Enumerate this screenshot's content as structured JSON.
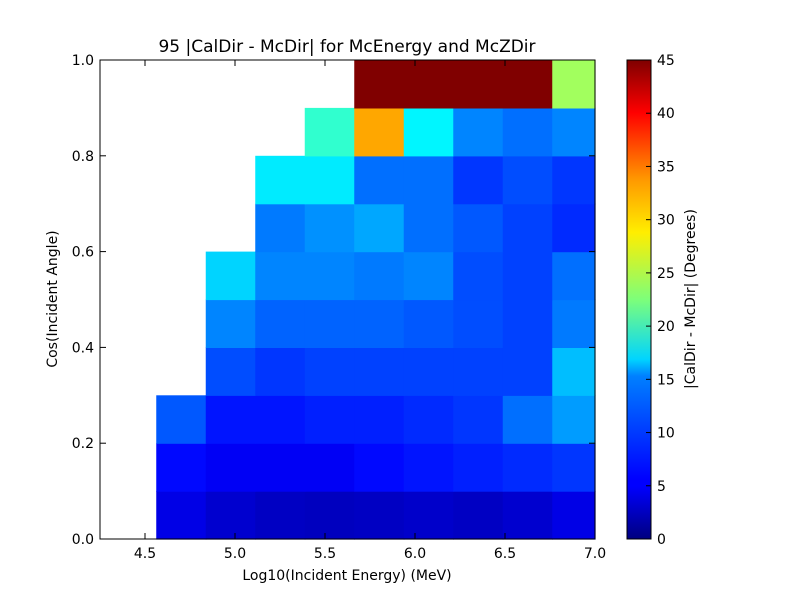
{
  "chart_data": {
    "type": "heatmap",
    "title": "95 |CalDir - McDir| for McEnergy and McZDir",
    "xlabel": "Log10(Incident Energy) (MeV)",
    "ylabel": "Cos(Incident Angle)",
    "colorbar_label": "|CalDir - McDir| (Degrees)",
    "colormap": "jet",
    "xlim": [
      4.25,
      7.0
    ],
    "ylim": [
      0.0,
      1.0
    ],
    "clim": [
      0,
      45
    ],
    "x_edges": [
      4.5625,
      4.8375,
      5.1125,
      5.3875,
      5.6625,
      5.9375,
      6.2125,
      6.4875,
      6.7625,
      7.0
    ],
    "y_edges": [
      0.0,
      0.1,
      0.2,
      0.3,
      0.4,
      0.5,
      0.6,
      0.7,
      0.8,
      0.9,
      1.0
    ],
    "values": [
      [
        4.5,
        3.5,
        3.0,
        2.8,
        3.0,
        3.3,
        3.0,
        3.5,
        4.5
      ],
      [
        6.0,
        5.2,
        5.2,
        5.2,
        6.0,
        6.5,
        7.0,
        7.5,
        8.0
      ],
      [
        9.5,
        6.5,
        6.5,
        7.0,
        7.0,
        7.5,
        8.0,
        10.5,
        12.5
      ],
      [
        null,
        9.0,
        8.0,
        8.5,
        8.5,
        8.5,
        8.5,
        8.5,
        14.0
      ],
      [
        null,
        11.5,
        10.0,
        10.0,
        10.0,
        9.5,
        9.0,
        8.5,
        11.0
      ],
      [
        null,
        15.0,
        11.5,
        11.5,
        11.0,
        11.5,
        9.0,
        8.5,
        10.5
      ],
      [
        null,
        null,
        11.0,
        12.0,
        13.0,
        10.5,
        9.5,
        8.5,
        7.5
      ],
      [
        null,
        null,
        16.0,
        16.0,
        10.5,
        10.5,
        8.0,
        9.0,
        8.0
      ],
      [
        null,
        null,
        null,
        19.0,
        32.0,
        16.5,
        11.5,
        10.5,
        11.5
      ],
      [
        null,
        null,
        null,
        null,
        45,
        45,
        45,
        45,
        24.0
      ]
    ],
    "x_ticks": [
      4.5,
      5.0,
      5.5,
      6.0,
      6.5,
      7.0
    ],
    "x_tick_labels": [
      "4.5",
      "5.0",
      "5.5",
      "6.0",
      "6.5",
      "7.0"
    ],
    "y_ticks": [
      0.0,
      0.2,
      0.4,
      0.6,
      0.8,
      1.0
    ],
    "y_tick_labels": [
      "0.0",
      "0.2",
      "0.4",
      "0.6",
      "0.8",
      "1.0"
    ],
    "colorbar_ticks": [
      0,
      5,
      10,
      15,
      20,
      25,
      30,
      35,
      40,
      45
    ],
    "colorbar_tick_labels": [
      "0",
      "5",
      "10",
      "15",
      "20",
      "25",
      "30",
      "35",
      "40",
      "45"
    ]
  }
}
